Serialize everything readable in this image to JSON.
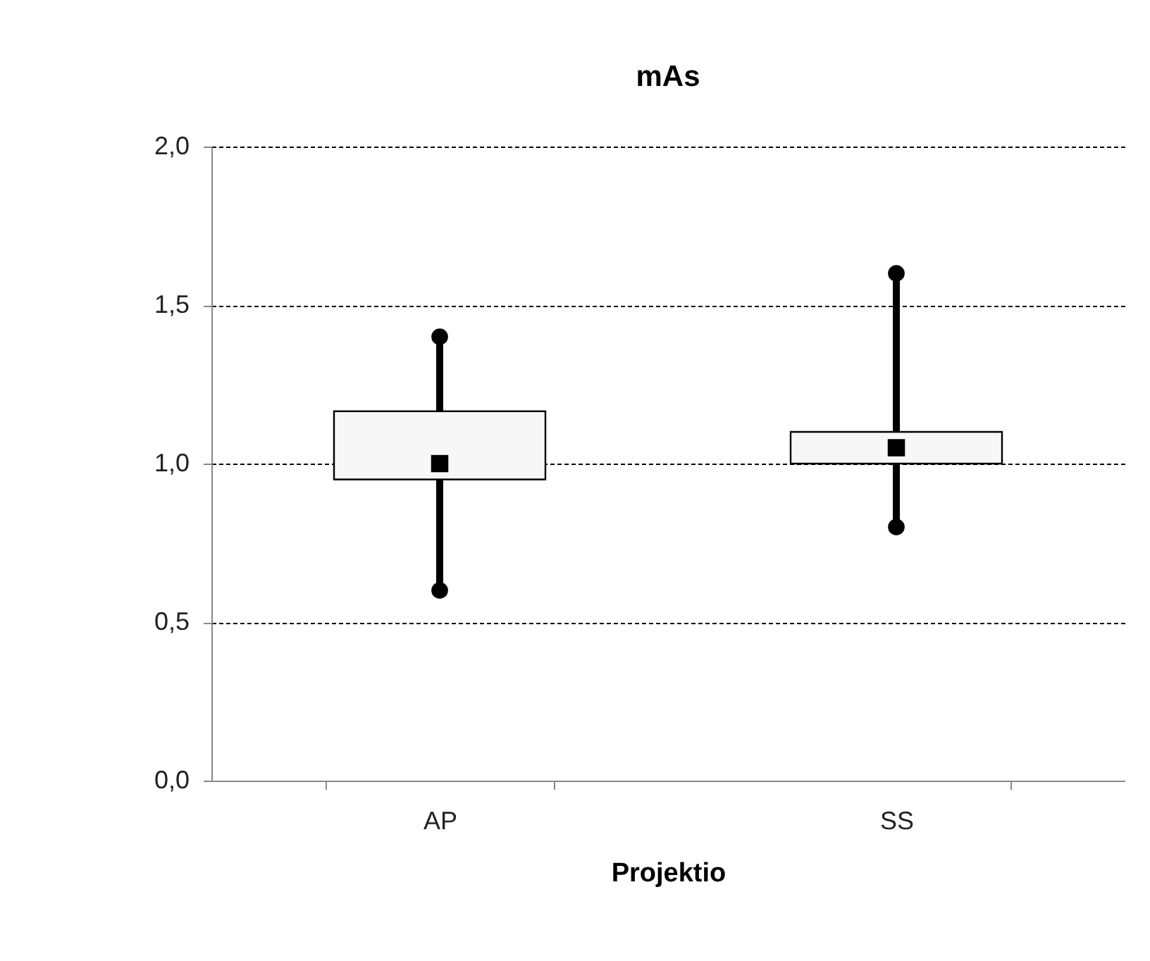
{
  "chart_data": {
    "type": "box",
    "title": "mAs",
    "xlabel": "Projektio",
    "categories": [
      "AP",
      "SS"
    ],
    "boxes": [
      {
        "low": 0.6,
        "q1": 0.95,
        "median": 1.0,
        "q3": 1.165,
        "high": 1.4
      },
      {
        "low": 0.8,
        "q1": 1.0,
        "median": 1.05,
        "q3": 1.1,
        "high": 1.6
      }
    ],
    "ylim": [
      0,
      2
    ],
    "yticks": [
      {
        "value": 0,
        "label": "0,0"
      },
      {
        "value": 0.5,
        "label": "0,5"
      },
      {
        "value": 1,
        "label": "1,0"
      },
      {
        "value": 1.5,
        "label": "1,5"
      },
      {
        "value": 2,
        "label": "2,0"
      }
    ],
    "grid": "y"
  }
}
